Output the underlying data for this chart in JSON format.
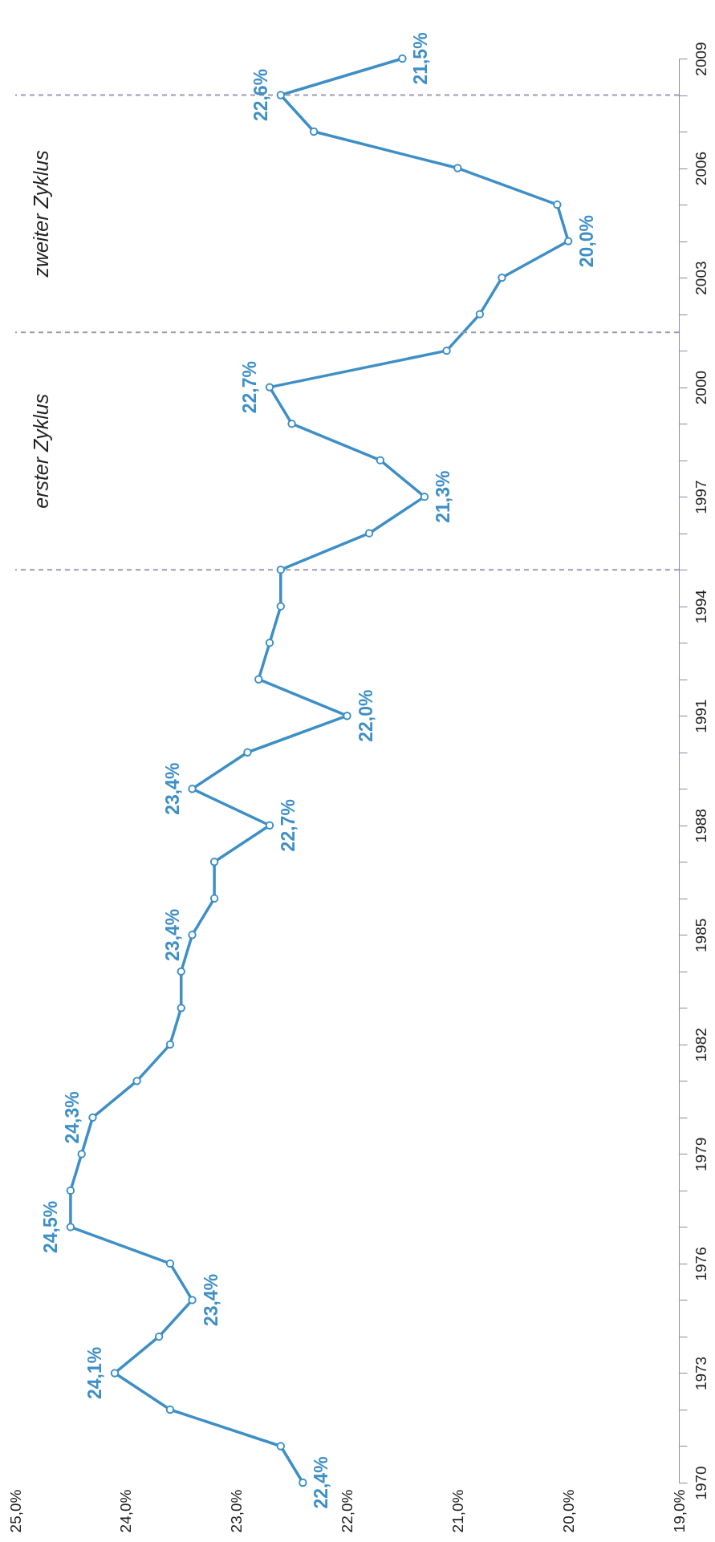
{
  "chart_data": {
    "type": "line",
    "orientation": "horizontal",
    "x": [
      1970,
      1971,
      1972,
      1973,
      1974,
      1975,
      1976,
      1977,
      1978,
      1979,
      1980,
      1981,
      1982,
      1983,
      1984,
      1985,
      1986,
      1987,
      1988,
      1989,
      1990,
      1991,
      1992,
      1993,
      1994,
      1995,
      1996,
      1997,
      1998,
      1999,
      2000,
      2001,
      2002,
      2003,
      2004,
      2005,
      2006,
      2007,
      2008,
      2009
    ],
    "series": [
      {
        "color": "#3d8fc6",
        "values": [
          22.4,
          22.6,
          23.6,
          24.1,
          23.7,
          23.4,
          23.6,
          24.5,
          24.5,
          24.4,
          24.3,
          23.9,
          23.6,
          23.5,
          23.5,
          23.4,
          23.2,
          23.2,
          22.7,
          23.4,
          22.9,
          22.0,
          22.8,
          22.7,
          22.6,
          22.6,
          21.8,
          21.3,
          21.7,
          22.5,
          22.7,
          21.1,
          20.8,
          20.6,
          20.0,
          20.1,
          21.0,
          22.3,
          22.6,
          21.5
        ],
        "value_labels": [
          "22,4%",
          null,
          null,
          "24,1%",
          null,
          "23,4%",
          null,
          "24,5%",
          null,
          null,
          "24,3%",
          null,
          null,
          null,
          null,
          "23,4%",
          null,
          null,
          "22,7%",
          "23,4%",
          null,
          "22,0%",
          null,
          null,
          null,
          null,
          null,
          "21,3%",
          null,
          null,
          "22,7%",
          null,
          null,
          null,
          "20,0%",
          null,
          null,
          null,
          "22,6%",
          "21,5%"
        ]
      }
    ],
    "xlim": [
      25,
      19
    ],
    "xticks": [
      {
        "value": 25,
        "label": "25,0%"
      },
      {
        "value": 24,
        "label": "24,0%"
      },
      {
        "value": 23,
        "label": "23,0%"
      },
      {
        "value": 22,
        "label": "22,0%"
      },
      {
        "value": 21,
        "label": "21,0%"
      },
      {
        "value": 20,
        "label": "20,0%"
      },
      {
        "value": 19,
        "label": "19,0%"
      }
    ],
    "ylim": [
      1970,
      2009
    ],
    "yticks": [
      1970,
      {
        "value": 1971,
        "label": null
      },
      {
        "value": 1972,
        "label": null
      },
      1973,
      {
        "value": 1974,
        "label": null
      },
      {
        "value": 1975,
        "label": null
      },
      1976,
      {
        "value": 1977,
        "label": null
      },
      {
        "value": 1978,
        "label": null
      },
      1979,
      {
        "value": 1980,
        "label": null
      },
      {
        "value": 1981,
        "label": null
      },
      1982,
      {
        "value": 1983,
        "label": null
      },
      {
        "value": 1984,
        "label": null
      },
      1985,
      {
        "value": 1986,
        "label": null
      },
      {
        "value": 1987,
        "label": null
      },
      1988,
      {
        "value": 1989,
        "label": null
      },
      {
        "value": 1990,
        "label": null
      },
      1991,
      {
        "value": 1992,
        "label": null
      },
      {
        "value": 1993,
        "label": null
      },
      1994,
      {
        "value": 1995,
        "label": null
      },
      {
        "value": 1996,
        "label": null
      },
      1997,
      {
        "value": 1998,
        "label": null
      },
      {
        "value": 1999,
        "label": null
      },
      2000,
      {
        "value": 2001,
        "label": null
      },
      {
        "value": 2002,
        "label": null
      },
      2003,
      {
        "value": 2004,
        "label": null
      },
      {
        "value": 2005,
        "label": null
      },
      2006,
      {
        "value": 2007,
        "label": null
      },
      {
        "value": 2008,
        "label": null
      },
      2009
    ],
    "ref_lines": [
      {
        "axis": "y",
        "value": 1995,
        "color": "#9a9ab8",
        "line_style": "dashed"
      },
      {
        "axis": "y",
        "value": 2001.5,
        "color": "#9a9ab8",
        "line_style": "dashed"
      },
      {
        "axis": "y",
        "value": 2008,
        "color": "#9a9ab8",
        "line_style": "dashed"
      }
    ],
    "annotations": [
      "erster Zyklus",
      "zweiter Zyklus"
    ],
    "grid": false,
    "marker": "circle",
    "line_style": "solid"
  }
}
